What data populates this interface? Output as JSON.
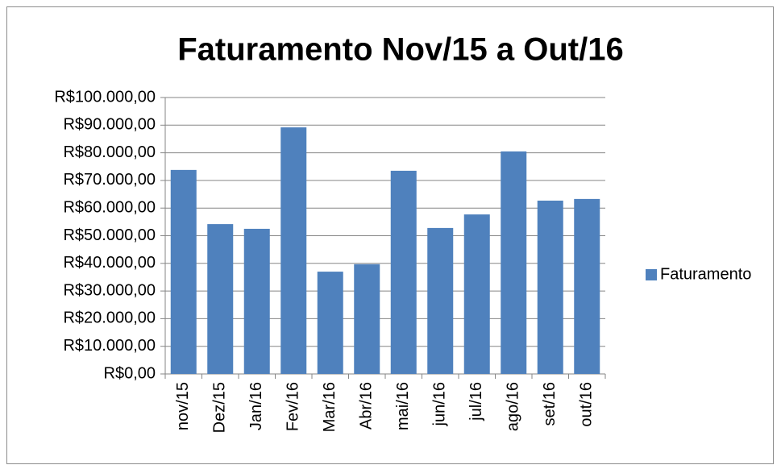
{
  "chart_data": {
    "type": "bar",
    "title": "Faturamento Nov/15 a Out/16",
    "categories": [
      "nov/15",
      "Dez/15",
      "Jan/16",
      "Fev/16",
      "Mar/16",
      "Abr/16",
      "mai/16",
      "jun/16",
      "jul/16",
      "ago/16",
      "set/16",
      "out/16"
    ],
    "series": [
      {
        "name": "Faturamento",
        "color": "#4f81bd",
        "values": [
          73800,
          54200,
          52500,
          89200,
          37000,
          39700,
          73500,
          52800,
          57700,
          80500,
          62700,
          63300
        ]
      }
    ],
    "ylim": [
      0,
      100000
    ],
    "yticks": [
      {
        "value": 0,
        "label": "R$0,00"
      },
      {
        "value": 10000,
        "label": "R$10.000,00"
      },
      {
        "value": 20000,
        "label": "R$20.000,00"
      },
      {
        "value": 30000,
        "label": "R$30.000,00"
      },
      {
        "value": 40000,
        "label": "R$40.000,00"
      },
      {
        "value": 50000,
        "label": "R$50.000,00"
      },
      {
        "value": 60000,
        "label": "R$60.000,00"
      },
      {
        "value": 70000,
        "label": "R$70.000,00"
      },
      {
        "value": 80000,
        "label": "R$80.000,00"
      },
      {
        "value": 90000,
        "label": "R$90.000,00"
      },
      {
        "value": 100000,
        "label": "R$100.000,00"
      }
    ],
    "grid": true,
    "legend": "right"
  }
}
